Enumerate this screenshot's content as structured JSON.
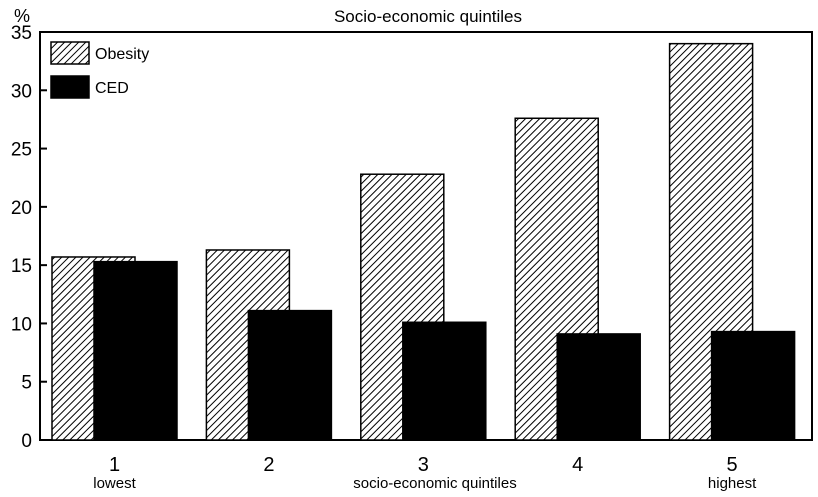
{
  "chart_data": {
    "type": "bar",
    "title": "Socio-economic quintiles",
    "ylabel": "%",
    "xlabel": "socio-economic quintiles",
    "ylim": [
      0,
      35
    ],
    "yticks": [
      0,
      5,
      10,
      15,
      20,
      25,
      30,
      35
    ],
    "categories": [
      "1",
      "2",
      "3",
      "4",
      "5"
    ],
    "category_sublabels": [
      "lowest",
      "",
      "",
      "",
      "highest"
    ],
    "series": [
      {
        "name": "Obesity",
        "values": [
          15.7,
          16.3,
          22.8,
          27.6,
          34.0
        ],
        "fill": "hatched"
      },
      {
        "name": "CED",
        "values": [
          15.3,
          11.1,
          10.1,
          9.1,
          9.3
        ],
        "fill": "solid"
      }
    ],
    "grid": false,
    "legend_position": "top-left",
    "colors": {
      "ink": "#000000",
      "background": "#ffffff"
    }
  }
}
